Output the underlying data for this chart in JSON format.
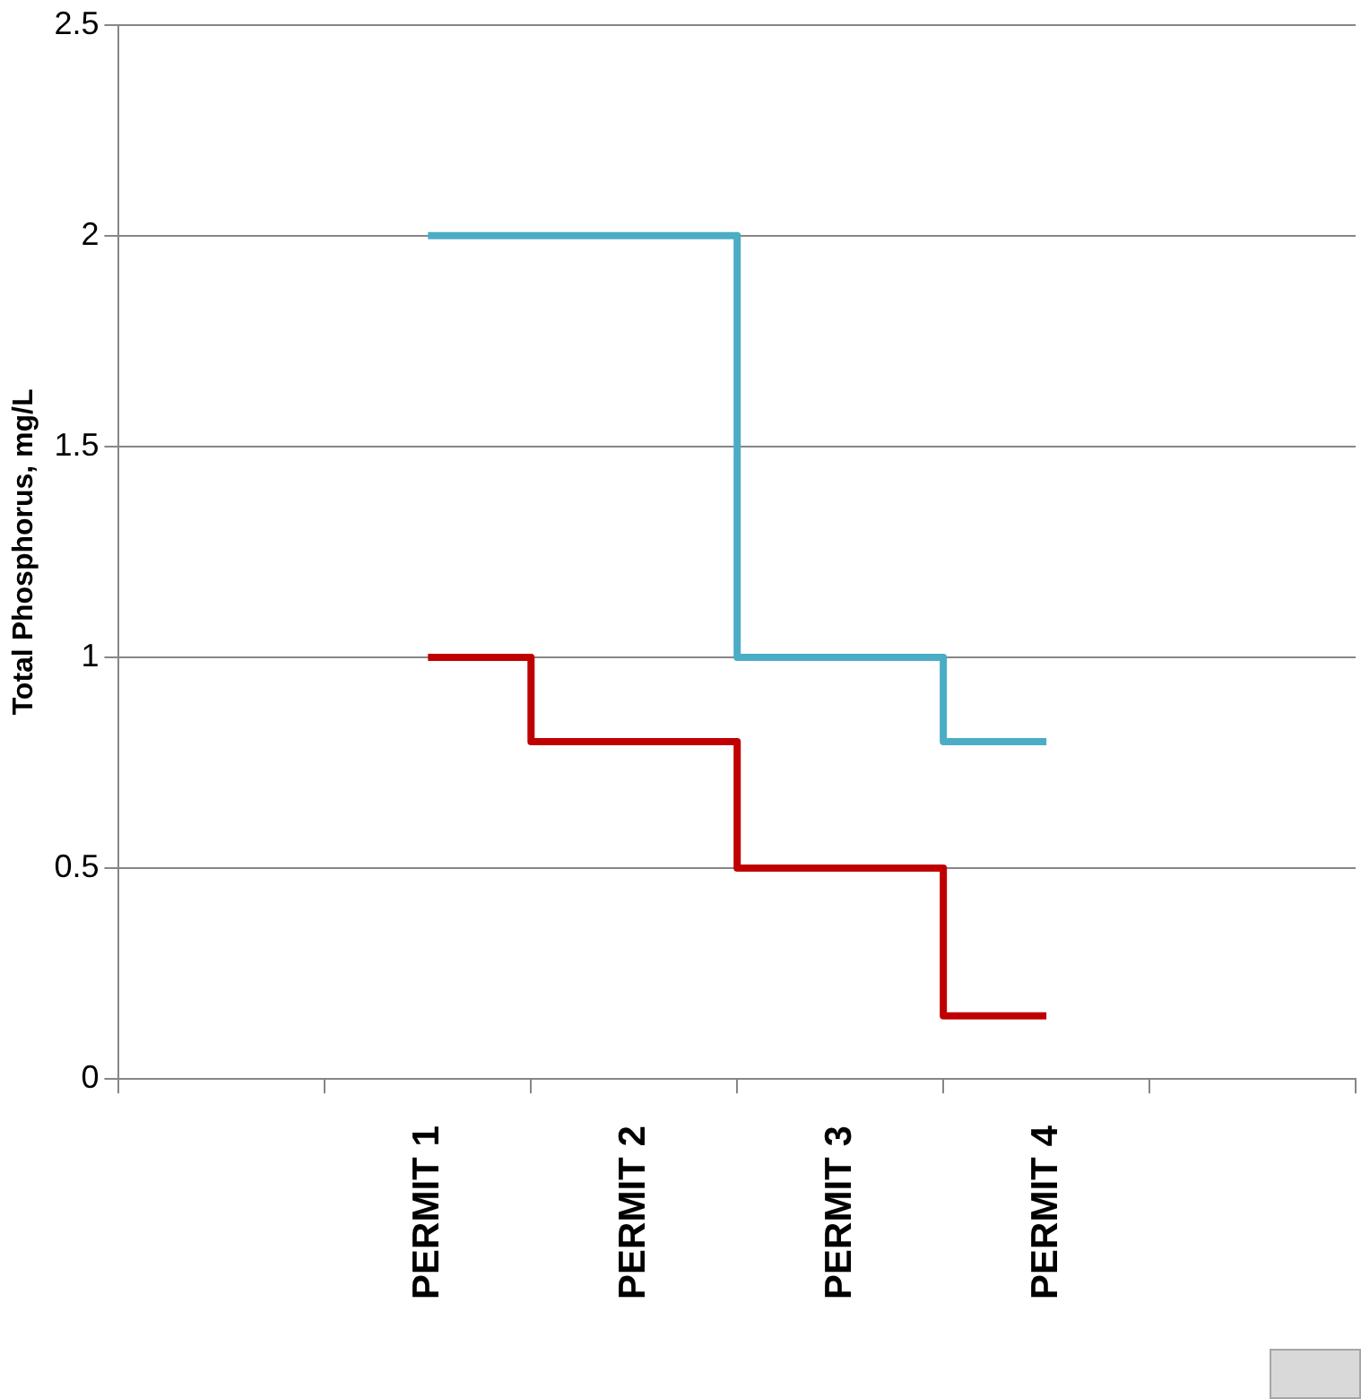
{
  "chart_data": {
    "type": "step",
    "ylabel": "Total Phosphorus, mg/L",
    "categories": [
      null,
      "PERMIT 1",
      "PERMIT 2",
      "PERMIT 3",
      "PERMIT 4",
      null
    ],
    "series": [
      {
        "color": "#4bacc6",
        "values": [
          null,
          2,
          2,
          1,
          0.8,
          null
        ]
      },
      {
        "color": "#c00000",
        "values": [
          null,
          1,
          0.8,
          0.5,
          0.15,
          null
        ]
      }
    ],
    "ylim": [
      0,
      2.5
    ],
    "yticks": [
      0,
      0.5,
      1,
      1.5,
      2,
      2.5
    ],
    "grid": "y",
    "legend": false
  }
}
